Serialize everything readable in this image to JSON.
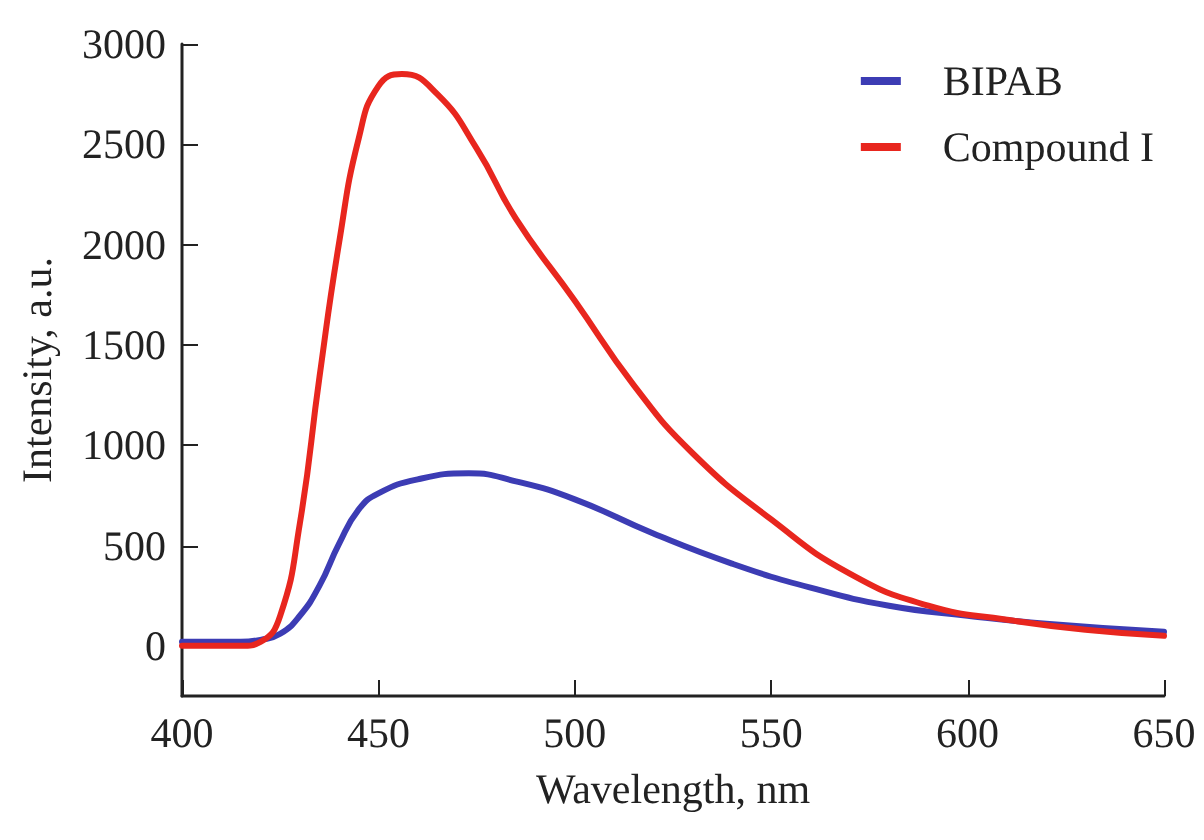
{
  "chart_data": {
    "type": "line",
    "xlabel": "Wavelength, nm",
    "ylabel": "Intensity, a.u.",
    "xlim": [
      400,
      650
    ],
    "xticks": [
      400,
      450,
      500,
      550,
      600,
      650
    ],
    "ylim": [
      -250,
      3000
    ],
    "yticks": [
      0,
      500,
      1000,
      1500,
      2000,
      2500,
      3000
    ],
    "grid": false,
    "legend": "top right",
    "marker": "none",
    "line_style": "solid",
    "series": [
      {
        "name": "BIPAB",
        "color": "#3c3cb4",
        "x": [
          400,
          415,
          420,
          425,
          430,
          435,
          440,
          445,
          450,
          460,
          473,
          485,
          500,
          520,
          540,
          560,
          580,
          600,
          620,
          650
        ],
        "values": [
          20,
          20,
          30,
          60,
          150,
          300,
          510,
          680,
          760,
          830,
          860,
          820,
          730,
          560,
          410,
          290,
          200,
          150,
          110,
          70
        ]
      },
      {
        "name": "Compound I",
        "color": "#e8261e",
        "x": [
          400,
          415,
          420,
          425,
          430,
          435,
          440,
          445,
          450,
          456,
          465,
          475,
          485,
          500,
          515,
          530,
          550,
          570,
          590,
          610,
          630,
          650
        ],
        "values": [
          0,
          0,
          20,
          150,
          610,
          1340,
          2010,
          2530,
          2790,
          2850,
          2750,
          2480,
          2130,
          1720,
          1300,
          960,
          630,
          360,
          200,
          130,
          80,
          50
        ]
      }
    ]
  }
}
